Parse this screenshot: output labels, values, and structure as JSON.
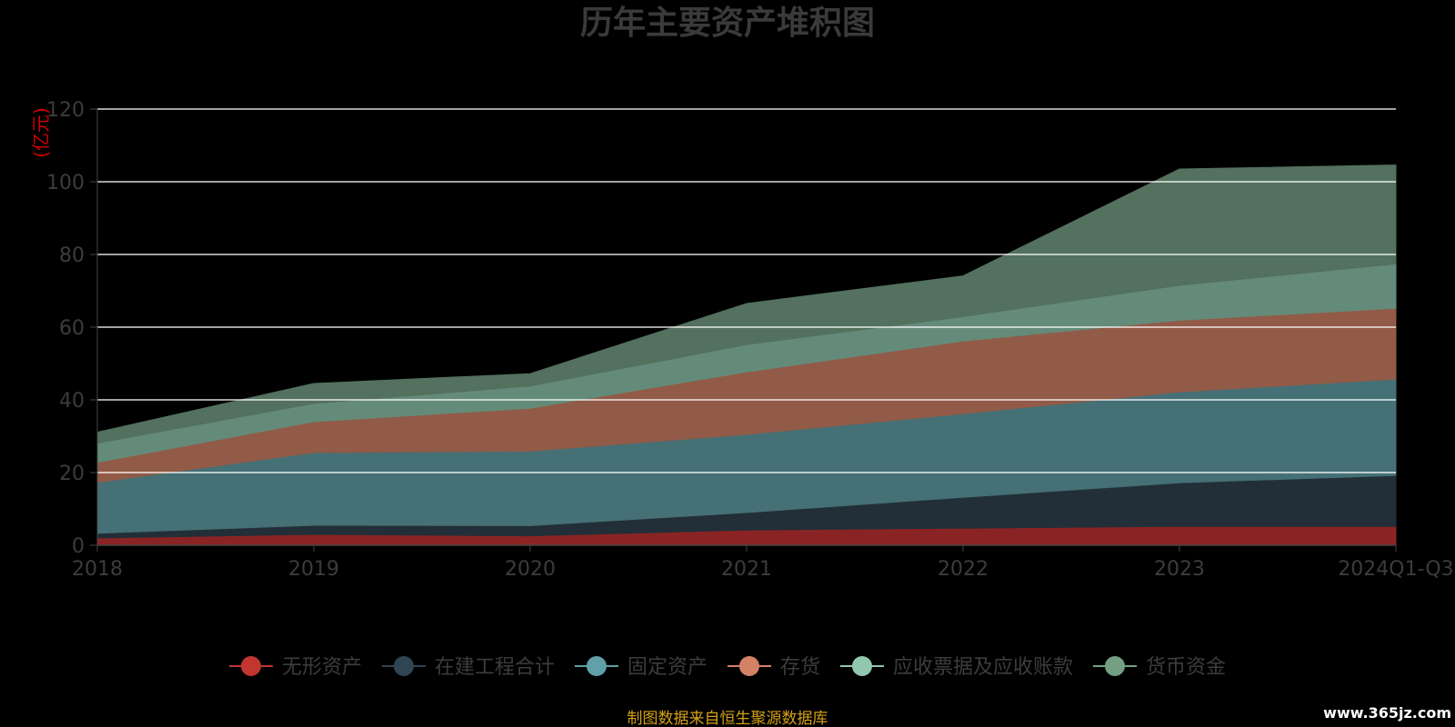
{
  "chart_data": {
    "type": "area",
    "stacked": true,
    "title": "历年主要资产堆积图",
    "unit_label": "(亿元)",
    "categories": [
      "2018",
      "2019",
      "2020",
      "2021",
      "2022",
      "2023",
      "2024Q1-Q3"
    ],
    "ylim": [
      0,
      120
    ],
    "yticks": [
      0,
      20,
      40,
      60,
      80,
      100,
      120
    ],
    "grid": true,
    "legend_position": "bottom",
    "series": [
      {
        "name": "无形资产",
        "color": "#c23531",
        "fill": "#8a2424",
        "values": [
          2.0,
          3.0,
          2.6,
          4.2,
          4.7,
          5.2,
          5.2
        ]
      },
      {
        "name": "在建工程合计",
        "color": "#2f4554",
        "fill": "#222f38",
        "values": [
          1.3,
          2.5,
          2.8,
          4.8,
          8.5,
          12.0,
          14.0
        ]
      },
      {
        "name": "固定资产",
        "color": "#61a0a8",
        "fill": "#457075",
        "values": [
          14.0,
          20.0,
          20.5,
          21.5,
          23.0,
          25.0,
          26.5
        ]
      },
      {
        "name": "存货",
        "color": "#d48265",
        "fill": "#915b48",
        "values": [
          5.5,
          8.5,
          11.8,
          17.2,
          20.0,
          19.7,
          19.5
        ]
      },
      {
        "name": "应收票据及应收账款",
        "color": "#91c7ae",
        "fill": "#648b7a",
        "values": [
          5.3,
          5.0,
          6.1,
          7.5,
          6.7,
          9.6,
          12.2
        ]
      },
      {
        "name": "货币资金",
        "color": "#749f83",
        "fill": "#53715e",
        "values": [
          3.0,
          5.5,
          3.4,
          11.3,
          11.2,
          32.0,
          27.2
        ]
      }
    ]
  },
  "footer": {
    "source": "制图数据来自恒生聚源数据库",
    "watermark": "www.365jz.com"
  }
}
